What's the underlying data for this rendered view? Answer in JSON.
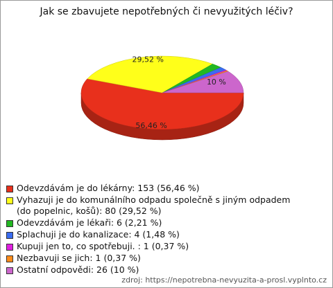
{
  "chart_data": {
    "type": "pie",
    "title": "Jak se zbavujete nepotřebných či nevyužitých léčiv?",
    "categories": [
      "Odevzdávám je do lékárny: 153 (56,46 %)",
      "Vyhazuji je do komunálního odpadu společně s jiným odpadem (do popelnic, košů): 80 (29,52 %)",
      "Odevzdávám je lékaři: 6 (2,21 %)",
      "Splachuji je do kanalizace: 4 (1,48 %)",
      "Kupuji jen to, co spotřebuji. : 1 (0,37 %)",
      "Nezbavuji se jich: 1 (0,37 %)",
      "Ostatní odpovědi: 26 (10 %)"
    ],
    "values": [
      56.46,
      29.52,
      2.21,
      1.48,
      0.37,
      0.37,
      10
    ],
    "value_labels": [
      "56,46 %",
      "29,52 %",
      null,
      null,
      null,
      null,
      "10 %"
    ],
    "colors": [
      "#e8301c",
      "#ffff1a",
      "#22b822",
      "#3a6cf0",
      "#e020e0",
      "#ff8c1a",
      "#cc66cc"
    ],
    "source": "zdroj: https://nepotrebna-nevyuzita-a-prosl.vyplnto.cz"
  }
}
